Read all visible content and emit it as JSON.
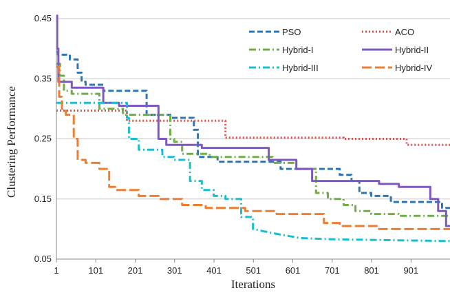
{
  "chart_data": {
    "type": "line",
    "xlabel": "Iterations",
    "ylabel": "Clustering Performance",
    "xlim": [
      1,
      1000
    ],
    "ylim": [
      0.05,
      0.45
    ],
    "x_ticks": [
      1,
      101,
      201,
      301,
      401,
      501,
      601,
      701,
      801,
      901
    ],
    "y_ticks": [
      0.05,
      0.15,
      0.25,
      0.35,
      0.45
    ],
    "y_tick_labels": [
      "0.05",
      "0.15",
      "0.25",
      "0.35",
      "0.45"
    ],
    "grid": "horizontal",
    "legend_position": "top-right",
    "series": [
      {
        "name": "PSO",
        "color": "#2e75b6",
        "dash": "dashed",
        "points": [
          [
            1,
            0.395
          ],
          [
            5,
            0.395
          ],
          [
            5,
            0.39
          ],
          [
            35,
            0.39
          ],
          [
            35,
            0.382
          ],
          [
            55,
            0.382
          ],
          [
            55,
            0.36
          ],
          [
            65,
            0.36
          ],
          [
            65,
            0.345
          ],
          [
            75,
            0.345
          ],
          [
            75,
            0.34
          ],
          [
            120,
            0.34
          ],
          [
            120,
            0.33
          ],
          [
            230,
            0.33
          ],
          [
            230,
            0.29
          ],
          [
            290,
            0.29
          ],
          [
            290,
            0.285
          ],
          [
            350,
            0.285
          ],
          [
            350,
            0.265
          ],
          [
            360,
            0.265
          ],
          [
            360,
            0.22
          ],
          [
            410,
            0.22
          ],
          [
            410,
            0.212
          ],
          [
            570,
            0.212
          ],
          [
            570,
            0.2
          ],
          [
            720,
            0.2
          ],
          [
            720,
            0.19
          ],
          [
            750,
            0.19
          ],
          [
            750,
            0.18
          ],
          [
            770,
            0.18
          ],
          [
            770,
            0.16
          ],
          [
            800,
            0.16
          ],
          [
            800,
            0.155
          ],
          [
            850,
            0.155
          ],
          [
            850,
            0.145
          ],
          [
            980,
            0.145
          ],
          [
            980,
            0.135
          ],
          [
            1000,
            0.135
          ]
        ]
      },
      {
        "name": "ACO",
        "color": "#d9534f",
        "dash": "dotted",
        "points": [
          [
            1,
            0.297
          ],
          [
            180,
            0.297
          ],
          [
            180,
            0.28
          ],
          [
            430,
            0.28
          ],
          [
            430,
            0.252
          ],
          [
            730,
            0.252
          ],
          [
            730,
            0.25
          ],
          [
            890,
            0.25
          ],
          [
            890,
            0.24
          ],
          [
            1000,
            0.24
          ]
        ]
      },
      {
        "name": "Hybrid-I",
        "color": "#70ad47",
        "dash": "dash-dot",
        "points": [
          [
            1,
            0.375
          ],
          [
            10,
            0.375
          ],
          [
            10,
            0.355
          ],
          [
            20,
            0.355
          ],
          [
            20,
            0.33
          ],
          [
            40,
            0.33
          ],
          [
            40,
            0.325
          ],
          [
            110,
            0.325
          ],
          [
            110,
            0.3
          ],
          [
            170,
            0.3
          ],
          [
            170,
            0.29
          ],
          [
            290,
            0.29
          ],
          [
            290,
            0.25
          ],
          [
            300,
            0.25
          ],
          [
            300,
            0.245
          ],
          [
            320,
            0.245
          ],
          [
            320,
            0.225
          ],
          [
            390,
            0.225
          ],
          [
            390,
            0.22
          ],
          [
            550,
            0.22
          ],
          [
            550,
            0.21
          ],
          [
            610,
            0.21
          ],
          [
            610,
            0.2
          ],
          [
            660,
            0.2
          ],
          [
            660,
            0.16
          ],
          [
            690,
            0.16
          ],
          [
            690,
            0.15
          ],
          [
            730,
            0.15
          ],
          [
            730,
            0.14
          ],
          [
            760,
            0.14
          ],
          [
            760,
            0.13
          ],
          [
            800,
            0.13
          ],
          [
            800,
            0.125
          ],
          [
            870,
            0.125
          ],
          [
            870,
            0.122
          ],
          [
            1000,
            0.122
          ]
        ]
      },
      {
        "name": "Hybrid-II",
        "color": "#7e57c2",
        "dash": "solid",
        "points": [
          [
            1,
            0.455
          ],
          [
            3,
            0.455
          ],
          [
            3,
            0.4
          ],
          [
            6,
            0.4
          ],
          [
            6,
            0.345
          ],
          [
            40,
            0.345
          ],
          [
            40,
            0.335
          ],
          [
            120,
            0.335
          ],
          [
            120,
            0.31
          ],
          [
            160,
            0.31
          ],
          [
            160,
            0.305
          ],
          [
            260,
            0.305
          ],
          [
            260,
            0.25
          ],
          [
            280,
            0.25
          ],
          [
            280,
            0.24
          ],
          [
            370,
            0.24
          ],
          [
            370,
            0.235
          ],
          [
            540,
            0.235
          ],
          [
            540,
            0.215
          ],
          [
            610,
            0.215
          ],
          [
            610,
            0.2
          ],
          [
            650,
            0.2
          ],
          [
            650,
            0.18
          ],
          [
            820,
            0.18
          ],
          [
            820,
            0.175
          ],
          [
            870,
            0.175
          ],
          [
            870,
            0.17
          ],
          [
            950,
            0.17
          ],
          [
            950,
            0.15
          ],
          [
            970,
            0.15
          ],
          [
            970,
            0.13
          ],
          [
            990,
            0.13
          ],
          [
            990,
            0.105
          ],
          [
            1000,
            0.105
          ]
        ]
      },
      {
        "name": "Hybrid-III",
        "color": "#17becf",
        "dash": "dash-dot",
        "points": [
          [
            1,
            0.31
          ],
          [
            180,
            0.31
          ],
          [
            180,
            0.285
          ],
          [
            185,
            0.285
          ],
          [
            185,
            0.25
          ],
          [
            210,
            0.25
          ],
          [
            210,
            0.232
          ],
          [
            270,
            0.232
          ],
          [
            270,
            0.22
          ],
          [
            300,
            0.22
          ],
          [
            300,
            0.215
          ],
          [
            340,
            0.215
          ],
          [
            340,
            0.18
          ],
          [
            370,
            0.18
          ],
          [
            370,
            0.165
          ],
          [
            400,
            0.165
          ],
          [
            400,
            0.155
          ],
          [
            430,
            0.155
          ],
          [
            430,
            0.15
          ],
          [
            470,
            0.15
          ],
          [
            470,
            0.12
          ],
          [
            500,
            0.12
          ],
          [
            500,
            0.1
          ],
          [
            560,
            0.092
          ],
          [
            620,
            0.085
          ],
          [
            700,
            0.083
          ],
          [
            800,
            0.082
          ],
          [
            900,
            0.081
          ],
          [
            1000,
            0.08
          ]
        ]
      },
      {
        "name": "Hybrid-IV",
        "color": "#ed7d31",
        "dash": "long-dash",
        "points": [
          [
            1,
            0.37
          ],
          [
            8,
            0.37
          ],
          [
            8,
            0.32
          ],
          [
            15,
            0.32
          ],
          [
            15,
            0.3
          ],
          [
            25,
            0.3
          ],
          [
            25,
            0.29
          ],
          [
            45,
            0.29
          ],
          [
            45,
            0.25
          ],
          [
            55,
            0.25
          ],
          [
            55,
            0.215
          ],
          [
            75,
            0.215
          ],
          [
            75,
            0.21
          ],
          [
            110,
            0.21
          ],
          [
            110,
            0.2
          ],
          [
            135,
            0.2
          ],
          [
            135,
            0.17
          ],
          [
            150,
            0.17
          ],
          [
            150,
            0.165
          ],
          [
            210,
            0.165
          ],
          [
            210,
            0.155
          ],
          [
            260,
            0.155
          ],
          [
            260,
            0.15
          ],
          [
            320,
            0.15
          ],
          [
            320,
            0.14
          ],
          [
            380,
            0.14
          ],
          [
            380,
            0.135
          ],
          [
            480,
            0.135
          ],
          [
            480,
            0.13
          ],
          [
            560,
            0.13
          ],
          [
            560,
            0.125
          ],
          [
            680,
            0.125
          ],
          [
            680,
            0.11
          ],
          [
            720,
            0.11
          ],
          [
            720,
            0.105
          ],
          [
            820,
            0.105
          ],
          [
            820,
            0.1
          ],
          [
            1000,
            0.1
          ]
        ]
      }
    ]
  }
}
